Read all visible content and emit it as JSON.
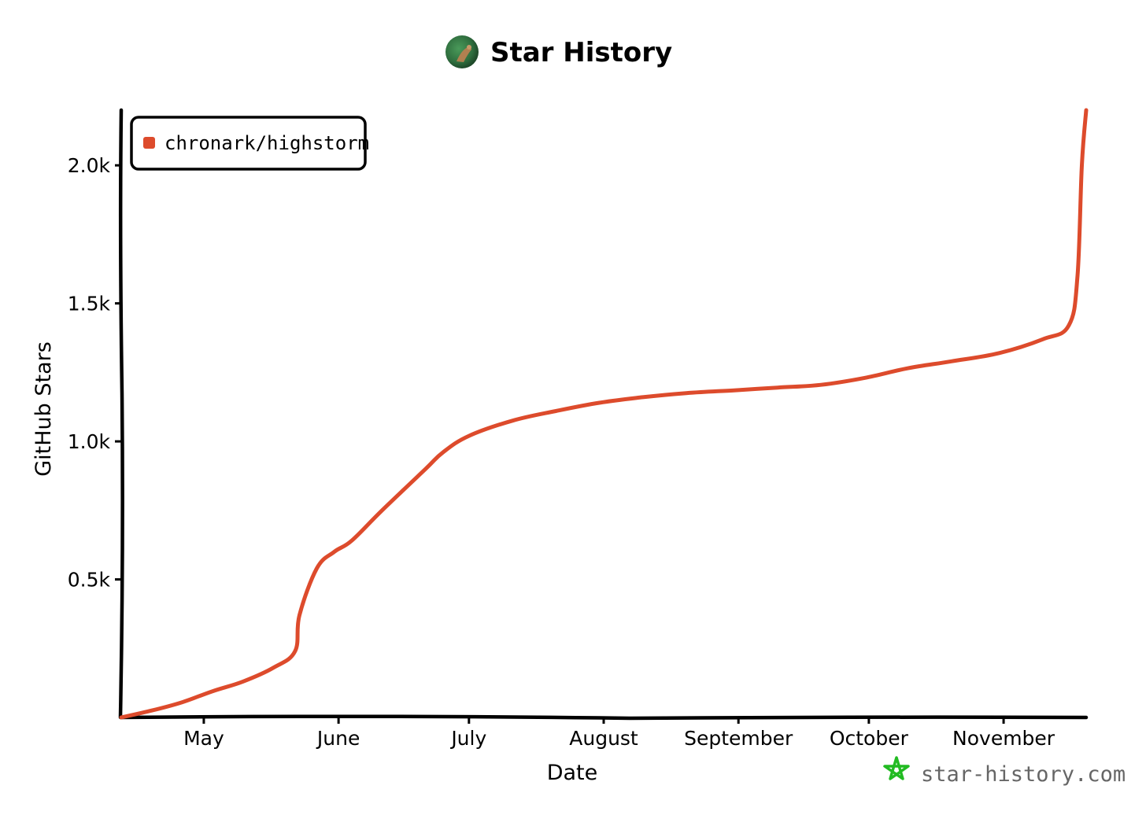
{
  "header": {
    "title": "Star History",
    "logo_icon": "avatar-icon"
  },
  "branding": {
    "text": "star-history.com",
    "icon": "star-icon",
    "color": "#22bb22"
  },
  "chart_data": {
    "type": "line",
    "title": "Star History",
    "xlabel": "Date",
    "ylabel": "GitHub Stars",
    "x_ticks": [
      "May",
      "June",
      "July",
      "August",
      "September",
      "October",
      "November"
    ],
    "y_ticks": [
      "0.5k",
      "1.0k",
      "1.5k",
      "2.0k"
    ],
    "y_tick_values": [
      500,
      1000,
      1500,
      2000
    ],
    "ylim": [
      0,
      2200
    ],
    "xlim": [
      "2023-04-12",
      "2023-11-20"
    ],
    "grid": false,
    "legend_position": "top-left",
    "series": [
      {
        "name": "chronark/highstorm",
        "color": "#dd4b2c",
        "points": [
          [
            "2023-04-12",
            0
          ],
          [
            "2023-04-19",
            25
          ],
          [
            "2023-04-26",
            55
          ],
          [
            "2023-05-03",
            95
          ],
          [
            "2023-05-10",
            130
          ],
          [
            "2023-05-17",
            180
          ],
          [
            "2023-05-22",
            240
          ],
          [
            "2023-05-23",
            370
          ],
          [
            "2023-05-27",
            540
          ],
          [
            "2023-05-31",
            600
          ],
          [
            "2023-06-04",
            640
          ],
          [
            "2023-06-11",
            750
          ],
          [
            "2023-06-21",
            900
          ],
          [
            "2023-06-25",
            960
          ],
          [
            "2023-07-01",
            1020
          ],
          [
            "2023-07-11",
            1075
          ],
          [
            "2023-07-21",
            1110
          ],
          [
            "2023-07-31",
            1140
          ],
          [
            "2023-08-10",
            1160
          ],
          [
            "2023-08-20",
            1175
          ],
          [
            "2023-08-31",
            1185
          ],
          [
            "2023-09-10",
            1195
          ],
          [
            "2023-09-20",
            1205
          ],
          [
            "2023-09-30",
            1230
          ],
          [
            "2023-10-10",
            1265
          ],
          [
            "2023-10-20",
            1290
          ],
          [
            "2023-10-31",
            1320
          ],
          [
            "2023-11-10",
            1370
          ],
          [
            "2023-11-16",
            1420
          ],
          [
            "2023-11-18",
            1600
          ],
          [
            "2023-11-19",
            2000
          ],
          [
            "2023-11-20",
            2200
          ]
        ]
      }
    ]
  }
}
